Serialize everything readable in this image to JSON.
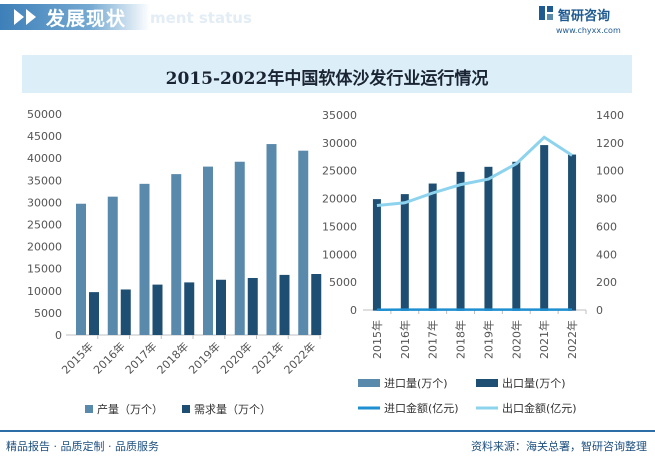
{
  "header": {
    "section_title": "发展现状",
    "section_sub": "ment status",
    "brand": "智研咨询",
    "brand_url": "www.chyxx.com"
  },
  "colors": {
    "production": "#5a8aab",
    "demand": "#1e4f73",
    "import": "#5a8aab",
    "export": "#1e4f73",
    "import_value": "#1e8fd0",
    "export_value": "#8ed3ee",
    "accent": "#2d6ea8"
  },
  "chart_data": [
    {
      "type": "bar",
      "title": "2015-2022年中国软体沙发行业运行情况",
      "categories": [
        "2015年",
        "2016年",
        "2017年",
        "2018年",
        "2019年",
        "2020年",
        "2021年",
        "2022年"
      ],
      "ylim": [
        0,
        50000
      ],
      "yticks": [
        "0",
        "5000",
        "10000",
        "15000",
        "20000",
        "25000",
        "30000",
        "35000",
        "40000",
        "45000",
        "50000"
      ],
      "grid": false,
      "legend": "bottom",
      "series": [
        {
          "name": "产量（万个）",
          "values": [
            29700,
            31300,
            34200,
            36400,
            38100,
            39200,
            43200,
            41700
          ]
        },
        {
          "name": "需求量（万个）",
          "values": [
            9700,
            10300,
            11400,
            11900,
            12500,
            12900,
            13600,
            13800
          ]
        }
      ]
    },
    {
      "type": "bar",
      "categories": [
        "2015年",
        "2016年",
        "2017年",
        "2018年",
        "2019年",
        "2020年",
        "2021年",
        "2022年"
      ],
      "ylim": [
        0,
        35000
      ],
      "y2lim": [
        0,
        1400
      ],
      "yticks": [
        "0",
        "5000",
        "10000",
        "15000",
        "20000",
        "25000",
        "30000",
        "35000"
      ],
      "y2ticks": [
        "0",
        "200",
        "400",
        "600",
        "800",
        "1000",
        "1200",
        "1400"
      ],
      "grid": false,
      "legend": "bottom",
      "series": [
        {
          "name": "进口量(万个)",
          "type": "bar",
          "axis": "left",
          "values": [
            8,
            9,
            9,
            8,
            8,
            7,
            8,
            8
          ]
        },
        {
          "name": "出口量(万个)",
          "type": "bar",
          "axis": "left",
          "values": [
            19900,
            20800,
            22700,
            24800,
            25700,
            26600,
            29600,
            27900
          ]
        },
        {
          "name": "进口金额(亿元)",
          "type": "line",
          "axis": "right",
          "values": [
            2,
            3,
            3,
            3,
            3,
            3,
            3,
            3
          ]
        },
        {
          "name": "出口金额(亿元)",
          "type": "line",
          "axis": "right",
          "values": [
            750,
            770,
            840,
            900,
            940,
            1050,
            1240,
            1110
          ]
        }
      ]
    }
  ],
  "footer": {
    "left": "精品报告 · 品质定制 · 品质服务",
    "right": "资料来源：海关总署，智研咨询整理"
  }
}
